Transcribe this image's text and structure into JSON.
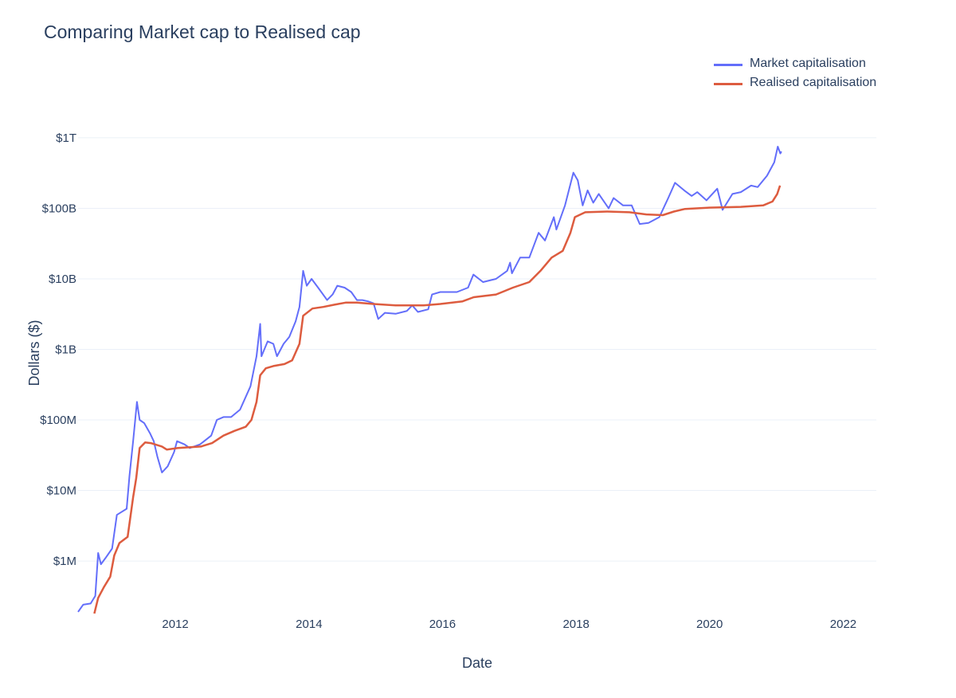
{
  "chart_data": {
    "type": "line",
    "title": "Comparing Market cap to Realised cap",
    "xlabel": "Date",
    "ylabel": "Dollars ($)",
    "y_scale": "log",
    "xlim": [
      "2010-07-18",
      "2022-07-01"
    ],
    "ylim": [
      180000,
      1400000000000
    ],
    "grid": true,
    "legend_position": "top-right",
    "x_ticks": [
      "2012",
      "2014",
      "2016",
      "2018",
      "2020",
      "2022"
    ],
    "y_ticks": [
      {
        "value": 1000000,
        "label": "$1M"
      },
      {
        "value": 10000000,
        "label": "$10M"
      },
      {
        "value": 100000000,
        "label": "$100M"
      },
      {
        "value": 1000000000,
        "label": "$1B"
      },
      {
        "value": 10000000000,
        "label": "$10B"
      },
      {
        "value": 100000000000,
        "label": "$100B"
      },
      {
        "value": 1000000000000,
        "label": "$1T"
      }
    ],
    "series": [
      {
        "name": "Market capitalisation",
        "color": "#636efa",
        "points": [
          [
            "2010-07-18",
            190000
          ],
          [
            "2010-08-15",
            240000
          ],
          [
            "2010-09-25",
            250000
          ],
          [
            "2010-10-20",
            320000
          ],
          [
            "2010-11-05",
            1300000
          ],
          [
            "2010-11-20",
            900000
          ],
          [
            "2010-12-15",
            1100000
          ],
          [
            "2011-01-20",
            1500000
          ],
          [
            "2011-02-15",
            4500000
          ],
          [
            "2011-03-15",
            5000000
          ],
          [
            "2011-04-10",
            5500000
          ],
          [
            "2011-04-25",
            16000000
          ],
          [
            "2011-05-15",
            50000000
          ],
          [
            "2011-06-05",
            180000000
          ],
          [
            "2011-06-20",
            100000000
          ],
          [
            "2011-07-15",
            90000000
          ],
          [
            "2011-08-15",
            65000000
          ],
          [
            "2011-09-05",
            50000000
          ],
          [
            "2011-09-25",
            30000000
          ],
          [
            "2011-10-20",
            18000000
          ],
          [
            "2011-11-20",
            22000000
          ],
          [
            "2011-12-25",
            35000000
          ],
          [
            "2012-01-10",
            50000000
          ],
          [
            "2012-02-20",
            45000000
          ],
          [
            "2012-03-20",
            40000000
          ],
          [
            "2012-05-15",
            45000000
          ],
          [
            "2012-07-15",
            60000000
          ],
          [
            "2012-08-15",
            100000000
          ],
          [
            "2012-09-20",
            110000000
          ],
          [
            "2012-11-01",
            110000000
          ],
          [
            "2012-12-20",
            140000000
          ],
          [
            "2013-02-15",
            300000000
          ],
          [
            "2013-03-20",
            800000000
          ],
          [
            "2013-04-09",
            2300000000
          ],
          [
            "2013-04-16",
            800000000
          ],
          [
            "2013-05-20",
            1300000000
          ],
          [
            "2013-06-20",
            1200000000
          ],
          [
            "2013-07-10",
            800000000
          ],
          [
            "2013-08-15",
            1200000000
          ],
          [
            "2013-09-15",
            1500000000
          ],
          [
            "2013-10-20",
            2500000000
          ],
          [
            "2013-11-10",
            4000000000
          ],
          [
            "2013-11-30",
            13000000000
          ],
          [
            "2013-12-20",
            8000000000
          ],
          [
            "2014-01-15",
            10000000000
          ],
          [
            "2014-02-20",
            7500000000
          ],
          [
            "2014-04-10",
            5000000000
          ],
          [
            "2014-05-10",
            6000000000
          ],
          [
            "2014-06-05",
            8000000000
          ],
          [
            "2014-07-15",
            7500000000
          ],
          [
            "2014-08-20",
            6500000000
          ],
          [
            "2014-09-20",
            5000000000
          ],
          [
            "2014-10-20",
            5000000000
          ],
          [
            "2014-11-20",
            4800000000
          ],
          [
            "2014-12-20",
            4500000000
          ],
          [
            "2015-01-15",
            2700000000
          ],
          [
            "2015-02-20",
            3300000000
          ],
          [
            "2015-04-20",
            3200000000
          ],
          [
            "2015-06-20",
            3500000000
          ],
          [
            "2015-07-20",
            4200000000
          ],
          [
            "2015-08-20",
            3400000000
          ],
          [
            "2015-10-15",
            3700000000
          ],
          [
            "2015-11-05",
            6000000000
          ],
          [
            "2015-12-20",
            6500000000
          ],
          [
            "2016-03-20",
            6500000000
          ],
          [
            "2016-05-20",
            7500000000
          ],
          [
            "2016-06-18",
            11500000000
          ],
          [
            "2016-08-10",
            9000000000
          ],
          [
            "2016-10-20",
            10000000000
          ],
          [
            "2016-12-20",
            13000000000
          ],
          [
            "2017-01-05",
            17000000000
          ],
          [
            "2017-01-15",
            12000000000
          ],
          [
            "2017-03-01",
            20000000000
          ],
          [
            "2017-04-20",
            20000000000
          ],
          [
            "2017-06-10",
            45000000000
          ],
          [
            "2017-07-15",
            35000000000
          ],
          [
            "2017-09-01",
            75000000000
          ],
          [
            "2017-09-15",
            50000000000
          ],
          [
            "2017-11-01",
            110000000000
          ],
          [
            "2017-12-17",
            320000000000
          ],
          [
            "2018-01-10",
            250000000000
          ],
          [
            "2018-02-06",
            110000000000
          ],
          [
            "2018-03-05",
            180000000000
          ],
          [
            "2018-04-05",
            120000000000
          ],
          [
            "2018-05-05",
            160000000000
          ],
          [
            "2018-06-28",
            100000000000
          ],
          [
            "2018-07-25",
            140000000000
          ],
          [
            "2018-09-15",
            110000000000
          ],
          [
            "2018-11-01",
            110000000000
          ],
          [
            "2018-12-15",
            60000000000
          ],
          [
            "2019-02-01",
            62000000000
          ],
          [
            "2019-04-01",
            75000000000
          ],
          [
            "2019-05-20",
            140000000000
          ],
          [
            "2019-06-26",
            230000000000
          ],
          [
            "2019-08-15",
            180000000000
          ],
          [
            "2019-09-25",
            150000000000
          ],
          [
            "2019-10-26",
            170000000000
          ],
          [
            "2019-12-15",
            130000000000
          ],
          [
            "2020-02-12",
            190000000000
          ],
          [
            "2020-03-12",
            95000000000
          ],
          [
            "2020-05-05",
            160000000000
          ],
          [
            "2020-06-20",
            170000000000
          ],
          [
            "2020-08-15",
            210000000000
          ],
          [
            "2020-09-20",
            200000000000
          ],
          [
            "2020-11-10",
            290000000000
          ],
          [
            "2020-12-20",
            450000000000
          ],
          [
            "2021-01-08",
            750000000000
          ],
          [
            "2021-01-22",
            600000000000
          ],
          [
            "2021-01-28",
            640000000000
          ]
        ]
      },
      {
        "name": "Realised capitalisation",
        "color": "#dd5c3f",
        "points": [
          [
            "2010-10-15",
            180000
          ],
          [
            "2010-11-05",
            300000
          ],
          [
            "2010-12-05",
            420000
          ],
          [
            "2011-01-10",
            600000
          ],
          [
            "2011-02-01",
            1200000
          ],
          [
            "2011-03-01",
            1800000
          ],
          [
            "2011-04-15",
            2200000
          ],
          [
            "2011-05-15",
            8000000
          ],
          [
            "2011-06-01",
            15000000
          ],
          [
            "2011-06-20",
            40000000
          ],
          [
            "2011-07-20",
            48000000
          ],
          [
            "2011-08-20",
            47000000
          ],
          [
            "2011-10-20",
            42000000
          ],
          [
            "2011-11-15",
            38000000
          ],
          [
            "2012-01-15",
            40000000
          ],
          [
            "2012-05-20",
            42000000
          ],
          [
            "2012-07-20",
            47000000
          ],
          [
            "2012-09-20",
            60000000
          ],
          [
            "2012-11-20",
            70000000
          ],
          [
            "2013-01-20",
            80000000
          ],
          [
            "2013-02-20",
            100000000
          ],
          [
            "2013-03-20",
            180000000
          ],
          [
            "2013-04-09",
            430000000
          ],
          [
            "2013-05-10",
            540000000
          ],
          [
            "2013-06-20",
            580000000
          ],
          [
            "2013-08-20",
            620000000
          ],
          [
            "2013-10-01",
            700000000
          ],
          [
            "2013-11-10",
            1200000000
          ],
          [
            "2013-11-30",
            3000000000
          ],
          [
            "2014-01-20",
            3800000000
          ],
          [
            "2014-03-20",
            4000000000
          ],
          [
            "2014-05-20",
            4300000000
          ],
          [
            "2014-07-20",
            4600000000
          ],
          [
            "2014-09-20",
            4600000000
          ],
          [
            "2014-12-20",
            4400000000
          ],
          [
            "2015-04-20",
            4200000000
          ],
          [
            "2015-09-20",
            4200000000
          ],
          [
            "2015-12-20",
            4400000000
          ],
          [
            "2016-04-20",
            4800000000
          ],
          [
            "2016-06-20",
            5500000000
          ],
          [
            "2016-10-20",
            6000000000
          ],
          [
            "2017-01-20",
            7500000000
          ],
          [
            "2017-04-20",
            9000000000
          ],
          [
            "2017-06-20",
            13000000000
          ],
          [
            "2017-08-20",
            20000000000
          ],
          [
            "2017-10-20",
            25000000000
          ],
          [
            "2017-12-01",
            45000000000
          ],
          [
            "2017-12-25",
            75000000000
          ],
          [
            "2018-02-20",
            88000000000
          ],
          [
            "2018-06-20",
            90000000000
          ],
          [
            "2018-10-20",
            88000000000
          ],
          [
            "2019-01-20",
            82000000000
          ],
          [
            "2019-04-20",
            80000000000
          ],
          [
            "2019-06-20",
            90000000000
          ],
          [
            "2019-08-20",
            98000000000
          ],
          [
            "2019-12-20",
            102000000000
          ],
          [
            "2020-06-20",
            105000000000
          ],
          [
            "2020-10-20",
            110000000000
          ],
          [
            "2020-12-10",
            125000000000
          ],
          [
            "2021-01-05",
            160000000000
          ],
          [
            "2021-01-20",
            210000000000
          ]
        ]
      }
    ]
  }
}
